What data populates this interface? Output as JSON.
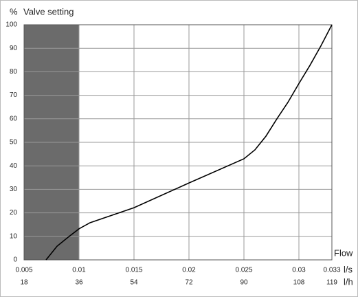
{
  "chart_data": {
    "type": "line",
    "y_unit": "%",
    "title": "Valve setting",
    "x_title": "Flow",
    "x_unit": "l/s",
    "x2_unit": "l/h",
    "x": [
      0.007,
      0.008,
      0.009,
      0.01,
      0.011,
      0.015,
      0.02,
      0.025,
      0.026,
      0.027,
      0.028,
      0.029,
      0.03,
      0.031,
      0.032,
      0.033
    ],
    "series": [
      {
        "color": "#000000",
        "values": [
          0,
          5.8,
          9.6,
          13.2,
          15.8,
          22.2,
          32.7,
          43,
          46.8,
          52.6,
          60,
          67,
          75,
          82.7,
          91,
          100
        ]
      }
    ],
    "xlim": [
      0.005,
      0.033
    ],
    "xticks": [
      0.005,
      0.01,
      0.015,
      0.02,
      0.025,
      0.03,
      0.033
    ],
    "x2lim": [
      18,
      118.8
    ],
    "x2ticks": [
      18,
      36,
      54,
      72,
      90,
      108,
      {
        "value": 118.8,
        "label": "119"
      }
    ],
    "ylim": [
      0,
      100
    ],
    "yticks": [
      0,
      10,
      20,
      30,
      40,
      50,
      60,
      70,
      80,
      90,
      100
    ],
    "shaded_range": [
      0.005,
      0.01
    ],
    "shade_color": "#6b6b6b",
    "grid": true
  }
}
